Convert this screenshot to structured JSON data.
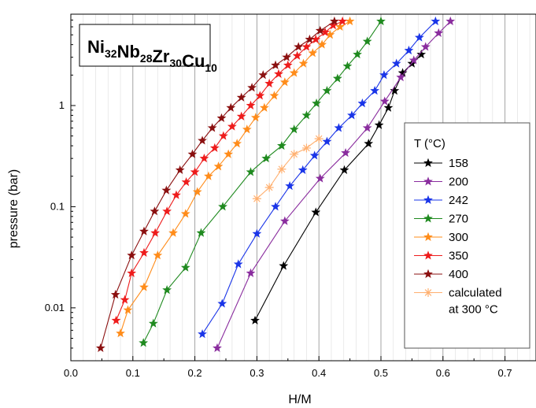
{
  "chart_data": {
    "type": "line",
    "title_parts": [
      {
        "text": "Ni",
        "sub": "32"
      },
      {
        "text": "Nb",
        "sub": "28"
      },
      {
        "text": "Zr",
        "sub": "30"
      },
      {
        "text": "Cu",
        "sub": "10"
      }
    ],
    "xlabel": "H/M",
    "ylabel": "pressure (bar)",
    "xlim": [
      0.0,
      0.75
    ],
    "ylim": [
      0.003,
      8
    ],
    "yscale": "log",
    "x_ticks": [
      "0.0",
      "0.1",
      "0.2",
      "0.3",
      "0.4",
      "0.5",
      "0.6",
      "0.7"
    ],
    "y_ticks": [
      "0.01",
      "0.1",
      "1"
    ],
    "grid": "vertical",
    "legend_title": "T (°C)",
    "legend_position": "right",
    "series": [
      {
        "name": "158",
        "color": "#000000",
        "marker": "star",
        "points": [
          [
            0.297,
            0.0075
          ],
          [
            0.343,
            0.026
          ],
          [
            0.395,
            0.088
          ],
          [
            0.441,
            0.23
          ],
          [
            0.48,
            0.42
          ],
          [
            0.497,
            0.64
          ],
          [
            0.512,
            0.95
          ],
          [
            0.522,
            1.4
          ],
          [
            0.535,
            2.1
          ],
          [
            0.55,
            2.6
          ],
          [
            0.565,
            3.2
          ]
        ]
      },
      {
        "name": "200",
        "color": "#8a2d9e",
        "marker": "star",
        "points": [
          [
            0.236,
            0.004
          ],
          [
            0.29,
            0.022
          ],
          [
            0.345,
            0.072
          ],
          [
            0.402,
            0.19
          ],
          [
            0.443,
            0.34
          ],
          [
            0.478,
            0.6
          ],
          [
            0.506,
            1.1
          ],
          [
            0.532,
            1.9
          ],
          [
            0.553,
            2.8
          ],
          [
            0.572,
            3.8
          ],
          [
            0.593,
            5.2
          ],
          [
            0.612,
            6.8
          ]
        ]
      },
      {
        "name": "242",
        "color": "#1a35e8",
        "marker": "star",
        "points": [
          [
            0.212,
            0.0055
          ],
          [
            0.244,
            0.011
          ],
          [
            0.27,
            0.027
          ],
          [
            0.3,
            0.054
          ],
          [
            0.33,
            0.1
          ],
          [
            0.353,
            0.16
          ],
          [
            0.374,
            0.23
          ],
          [
            0.393,
            0.32
          ],
          [
            0.413,
            0.44
          ],
          [
            0.432,
            0.6
          ],
          [
            0.453,
            0.8
          ],
          [
            0.47,
            1.05
          ],
          [
            0.49,
            1.4
          ],
          [
            0.505,
            2.0
          ],
          [
            0.525,
            2.6
          ],
          [
            0.545,
            3.5
          ],
          [
            0.562,
            4.7
          ],
          [
            0.588,
            6.8
          ]
        ]
      },
      {
        "name": "270",
        "color": "#1f8a1f",
        "marker": "star",
        "points": [
          [
            0.117,
            0.0045
          ],
          [
            0.133,
            0.007
          ],
          [
            0.155,
            0.015
          ],
          [
            0.185,
            0.025
          ],
          [
            0.21,
            0.055
          ],
          [
            0.245,
            0.1
          ],
          [
            0.29,
            0.22
          ],
          [
            0.315,
            0.3
          ],
          [
            0.34,
            0.4
          ],
          [
            0.36,
            0.58
          ],
          [
            0.38,
            0.8
          ],
          [
            0.396,
            1.05
          ],
          [
            0.413,
            1.4
          ],
          [
            0.43,
            1.85
          ],
          [
            0.446,
            2.45
          ],
          [
            0.462,
            3.2
          ],
          [
            0.478,
            4.3
          ],
          [
            0.5,
            6.8
          ]
        ]
      },
      {
        "name": "300",
        "color": "#ff8c1a",
        "marker": "star",
        "points": [
          [
            0.08,
            0.0056
          ],
          [
            0.092,
            0.0095
          ],
          [
            0.118,
            0.016
          ],
          [
            0.14,
            0.033
          ],
          [
            0.165,
            0.055
          ],
          [
            0.185,
            0.085
          ],
          [
            0.204,
            0.14
          ],
          [
            0.222,
            0.2
          ],
          [
            0.238,
            0.25
          ],
          [
            0.254,
            0.33
          ],
          [
            0.268,
            0.42
          ],
          [
            0.284,
            0.58
          ],
          [
            0.298,
            0.76
          ],
          [
            0.312,
            0.95
          ],
          [
            0.328,
            1.25
          ],
          [
            0.345,
            1.7
          ],
          [
            0.36,
            2.1
          ],
          [
            0.375,
            2.6
          ],
          [
            0.39,
            3.3
          ],
          [
            0.405,
            4.0
          ],
          [
            0.418,
            5.0
          ],
          [
            0.434,
            6.0
          ],
          [
            0.45,
            6.8
          ]
        ]
      },
      {
        "name": "350",
        "color": "#ee1c1c",
        "marker": "star",
        "points": [
          [
            0.073,
            0.0075
          ],
          [
            0.087,
            0.012
          ],
          [
            0.098,
            0.022
          ],
          [
            0.118,
            0.035
          ],
          [
            0.136,
            0.055
          ],
          [
            0.155,
            0.09
          ],
          [
            0.17,
            0.13
          ],
          [
            0.186,
            0.175
          ],
          [
            0.2,
            0.22
          ],
          [
            0.215,
            0.3
          ],
          [
            0.232,
            0.38
          ],
          [
            0.246,
            0.5
          ],
          [
            0.26,
            0.62
          ],
          [
            0.275,
            0.78
          ],
          [
            0.29,
            1.0
          ],
          [
            0.305,
            1.25
          ],
          [
            0.32,
            1.65
          ],
          [
            0.335,
            2.05
          ],
          [
            0.35,
            2.5
          ],
          [
            0.365,
            3.1
          ],
          [
            0.38,
            3.8
          ],
          [
            0.395,
            4.5
          ],
          [
            0.41,
            5.3
          ],
          [
            0.423,
            6.2
          ],
          [
            0.438,
            6.8
          ]
        ]
      },
      {
        "name": "400",
        "color": "#8b1010",
        "marker": "star",
        "points": [
          [
            0.048,
            0.004
          ],
          [
            0.072,
            0.0135
          ],
          [
            0.098,
            0.033
          ],
          [
            0.118,
            0.057
          ],
          [
            0.135,
            0.09
          ],
          [
            0.154,
            0.145
          ],
          [
            0.176,
            0.23
          ],
          [
            0.196,
            0.33
          ],
          [
            0.212,
            0.45
          ],
          [
            0.228,
            0.6
          ],
          [
            0.243,
            0.75
          ],
          [
            0.258,
            0.95
          ],
          [
            0.275,
            1.2
          ],
          [
            0.292,
            1.5
          ],
          [
            0.31,
            2.0
          ],
          [
            0.33,
            2.5
          ],
          [
            0.348,
            3.0
          ],
          [
            0.367,
            3.8
          ],
          [
            0.385,
            4.5
          ],
          [
            0.402,
            5.5
          ],
          [
            0.425,
            6.8
          ]
        ]
      },
      {
        "name": "calculated\nat 300 °C",
        "color": "#ffb070",
        "marker": "asterisk",
        "points": [
          [
            0.3,
            0.12
          ],
          [
            0.32,
            0.155
          ],
          [
            0.34,
            0.235
          ],
          [
            0.36,
            0.33
          ],
          [
            0.38,
            0.38
          ],
          [
            0.4,
            0.47
          ]
        ]
      }
    ]
  }
}
